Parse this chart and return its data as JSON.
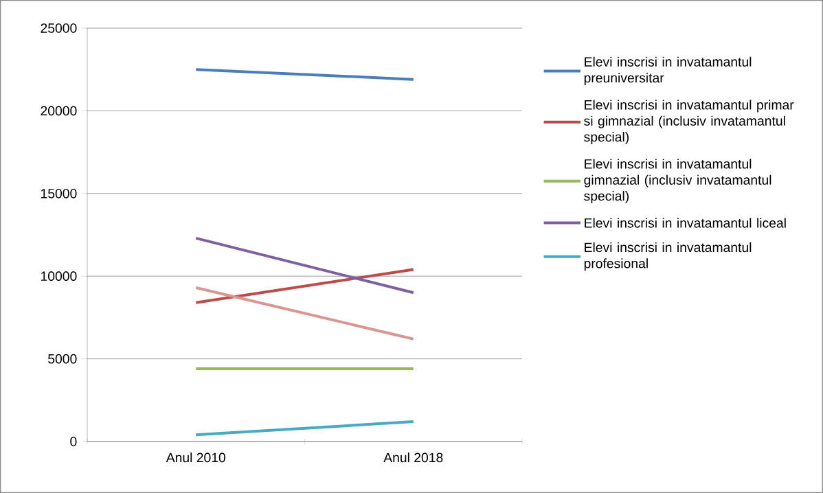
{
  "chart_data": {
    "type": "line",
    "categories": [
      "Anul 2010",
      "Anul 2018"
    ],
    "series": [
      {
        "name": "Elevi inscrisi in invatamantul preuniversitar",
        "color": "#4a7ebb",
        "values": [
          22500,
          21900
        ]
      },
      {
        "name": "Elevi inscrisi in invatamantul primar si gimnazial (inclusiv invatamantul special)",
        "color": "#be4b48",
        "values": [
          8400,
          10400
        ]
      },
      {
        "name": "Elevi inscrisi in invatamantul gimnazial (inclusiv invatamantul special)",
        "color": "#98b954",
        "values": [
          4400,
          4400
        ]
      },
      {
        "name": "Elevi inscrisi in invatamantul liceal",
        "color": "#7d60a0",
        "values": [
          12300,
          9000
        ]
      },
      {
        "name": "Elevi inscrisi in invatamantul profesional",
        "color": "#46aac5",
        "values": [
          400,
          1200
        ]
      },
      {
        "color": "#d99694",
        "values": [
          9300,
          6200
        ]
      }
    ],
    "ylim": [
      0,
      25000
    ],
    "yticks": [
      0,
      5000,
      10000,
      15000,
      20000,
      25000
    ],
    "grid": "y",
    "legend": "right",
    "marker": "none",
    "line_style": "solid"
  }
}
